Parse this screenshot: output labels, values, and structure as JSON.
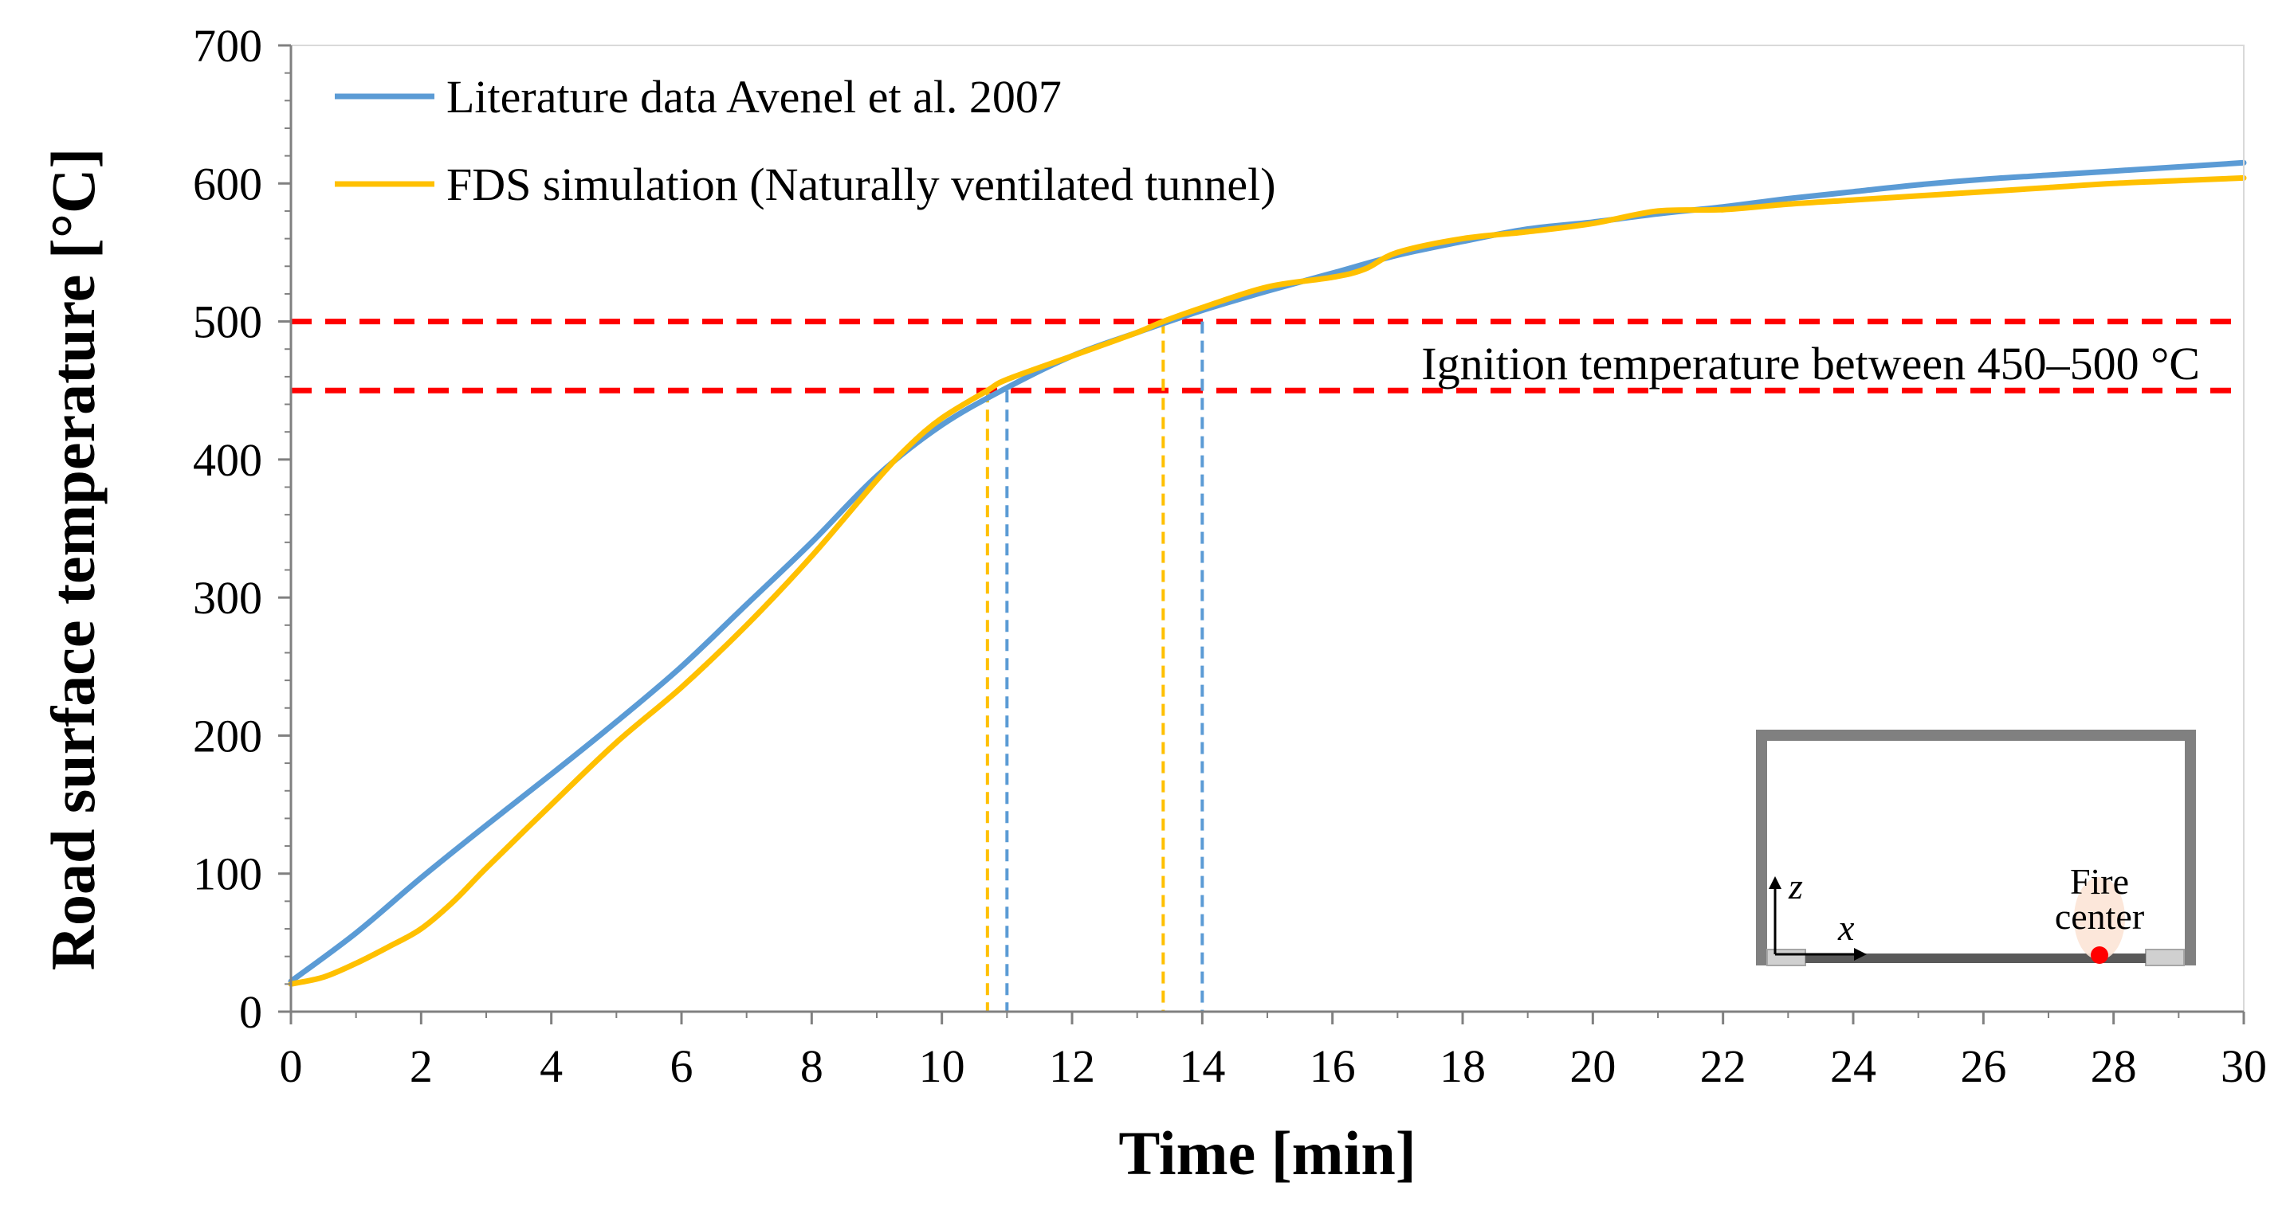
{
  "chart_data": {
    "type": "line",
    "xlabel": "Time [min]",
    "ylabel": "Road surface temperature [°C]",
    "xlim": [
      0,
      30
    ],
    "ylim": [
      0,
      700
    ],
    "x_ticks": [
      0,
      2,
      4,
      6,
      8,
      10,
      12,
      14,
      16,
      18,
      20,
      22,
      24,
      26,
      28,
      30
    ],
    "y_ticks": [
      0,
      100,
      200,
      300,
      400,
      500,
      600,
      700
    ],
    "grid": false,
    "legend_position": "top-left",
    "series": [
      {
        "name": "Literature data Avenel et al. 2007",
        "color": "#5B9BD5",
        "x": [
          0,
          1,
          2,
          3,
          4,
          5,
          6,
          7,
          8,
          9,
          10,
          11,
          12,
          13,
          14,
          15,
          16,
          17,
          18,
          19,
          20,
          21,
          22,
          23,
          24,
          25,
          26,
          27,
          28,
          29,
          30
        ],
        "y": [
          22,
          57,
          97,
          135,
          172,
          210,
          250,
          295,
          340,
          388,
          425,
          452,
          475,
          492,
          508,
          522,
          535,
          548,
          558,
          567,
          572,
          578,
          583,
          589,
          594,
          599,
          603,
          606,
          609,
          612,
          615
        ]
      },
      {
        "name": "FDS simulation (Naturally ventilated tunnel)",
        "color": "#FFC000",
        "x": [
          0,
          0.5,
          1,
          1.5,
          2,
          2.5,
          3,
          4,
          5,
          6,
          7,
          8,
          9,
          9.5,
          10,
          10.7,
          11,
          12,
          13,
          13.4,
          14,
          15,
          16,
          16.5,
          17,
          18,
          19,
          20,
          21,
          22,
          23,
          24,
          25,
          26,
          27,
          28,
          29,
          30
        ],
        "y": [
          20,
          25,
          35,
          47,
          60,
          80,
          104,
          150,
          195,
          235,
          280,
          330,
          385,
          410,
          430,
          450,
          458,
          475,
          492,
          500,
          510,
          525,
          532,
          538,
          550,
          560,
          565,
          571,
          580,
          581,
          585,
          588,
          591,
          594,
          597,
          600,
          602,
          604
        ]
      }
    ],
    "threshold_lines": {
      "color": "#FF0000",
      "values": [
        450,
        500
      ],
      "label": "Ignition temperature between 450‒500 °C"
    },
    "crossing_markers": [
      {
        "x": 10.7,
        "y": 450,
        "color": "#FFC000"
      },
      {
        "x": 11.0,
        "y": 450,
        "color": "#5B9BD5"
      },
      {
        "x": 13.4,
        "y": 500,
        "color": "#FFC000"
      },
      {
        "x": 14.0,
        "y": 500,
        "color": "#5B9BD5"
      }
    ]
  },
  "inset": {
    "z_label": "z",
    "x_label": "x",
    "fire_label_line1": "Fire",
    "fire_label_line2": "center",
    "wall_color": "#808080",
    "road_color": "#595959",
    "fire_dot_color": "#FF0000",
    "fire_glow_color": "#FCE4D6"
  }
}
